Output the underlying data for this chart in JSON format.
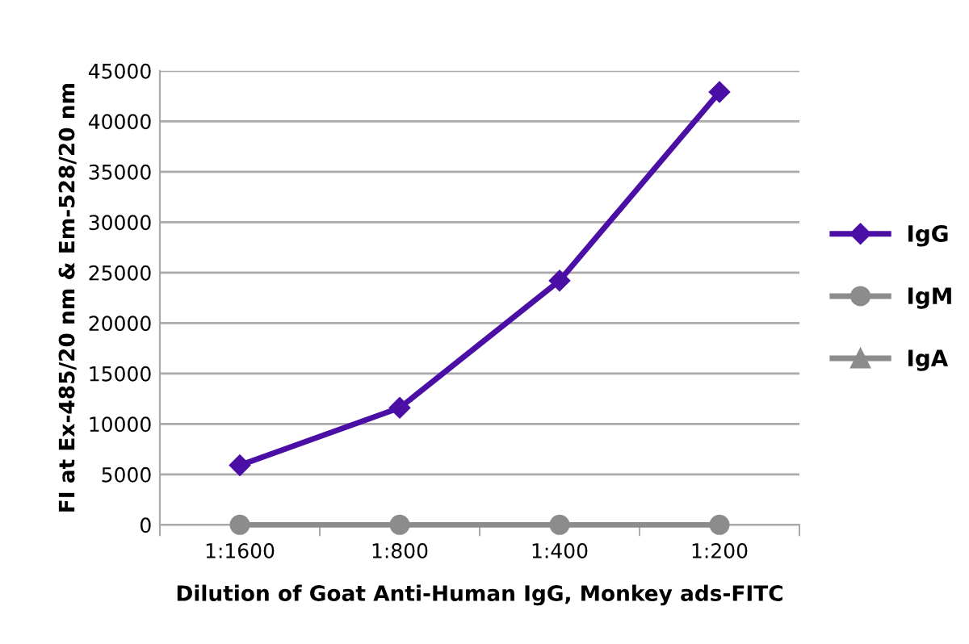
{
  "chart_data": {
    "type": "line",
    "xlabel": "Dilution of Goat Anti-Human IgG, Monkey ads-FITC",
    "ylabel": "FI at Ex-485/20 nm & Em-528/20 nm",
    "categories": [
      "1:1600",
      "1:800",
      "1:400",
      "1:200"
    ],
    "series": [
      {
        "name": "IgG",
        "color": "#4b0fa6",
        "marker": "diamond",
        "values": [
          5900,
          11600,
          24200,
          42900
        ]
      },
      {
        "name": "IgM",
        "color": "#8c8c8c",
        "marker": "circle",
        "values": [
          0,
          0,
          0,
          0
        ]
      },
      {
        "name": "IgA",
        "color": "#8c8c8c",
        "marker": "triangle",
        "values": [
          null,
          null,
          null,
          null
        ]
      }
    ],
    "ylim": [
      0,
      45000
    ],
    "yticks": [
      0,
      5000,
      10000,
      15000,
      20000,
      25000,
      30000,
      35000,
      40000,
      45000
    ],
    "grid": "y",
    "legend": "right",
    "line_style": "solid"
  }
}
